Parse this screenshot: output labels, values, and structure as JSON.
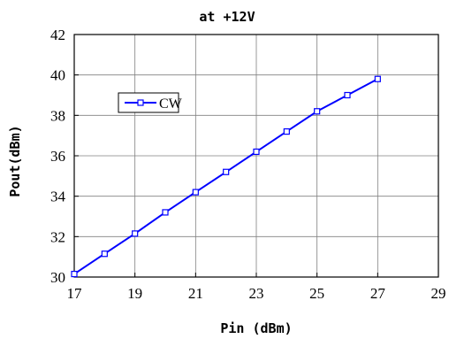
{
  "chart_data": {
    "type": "line",
    "title": "at +12V",
    "xlabel": "Pin (dBm)",
    "ylabel": "Pout(dBm)",
    "xlim": [
      17,
      29
    ],
    "ylim": [
      30,
      42
    ],
    "x_ticks": [
      "17",
      "19",
      "21",
      "23",
      "25",
      "27",
      "29"
    ],
    "y_ticks": [
      "30",
      "32",
      "34",
      "36",
      "38",
      "40",
      "42"
    ],
    "grid": true,
    "legend_position": "upper-left",
    "series": [
      {
        "name": "CW",
        "color": "#0000ff",
        "marker": "square",
        "x": [
          17,
          18,
          19,
          20,
          21,
          22,
          23,
          24,
          25,
          26,
          27
        ],
        "y": [
          30.15,
          31.15,
          32.15,
          33.2,
          34.2,
          35.2,
          36.2,
          37.2,
          38.2,
          39.0,
          39.8
        ]
      }
    ]
  }
}
